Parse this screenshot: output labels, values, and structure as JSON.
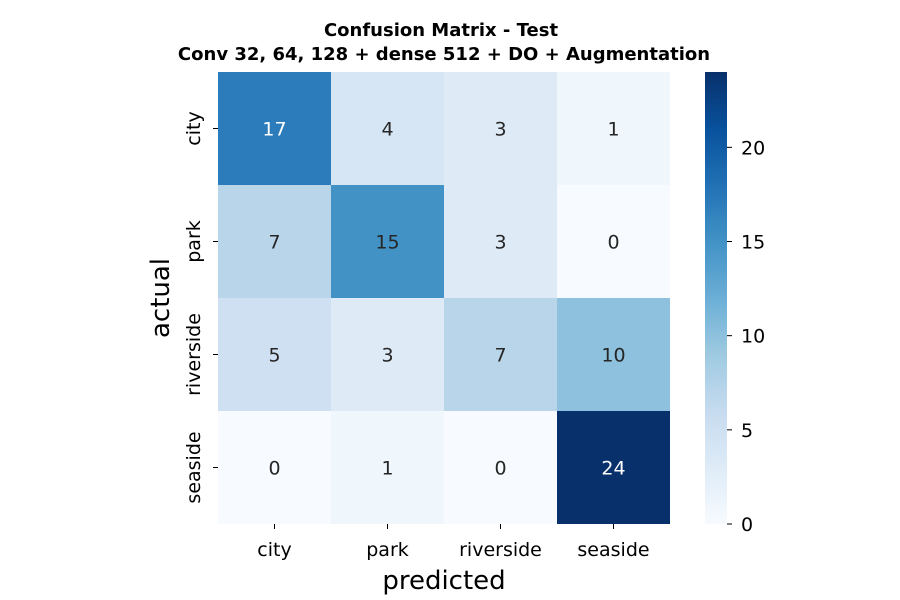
{
  "chart_data": {
    "type": "heatmap",
    "title": "Confusion Matrix - Test",
    "subtitle": "Conv 32, 64, 128 + dense 512 + DO + Augmentation",
    "xlabel": "predicted",
    "ylabel": "actual",
    "x_categories": [
      "city",
      "park",
      "riverside",
      "seaside"
    ],
    "y_categories": [
      "city",
      "park",
      "riverside",
      "seaside"
    ],
    "values": [
      [
        17,
        4,
        3,
        1
      ],
      [
        7,
        15,
        3,
        0
      ],
      [
        5,
        3,
        7,
        10
      ],
      [
        0,
        1,
        0,
        24
      ]
    ],
    "colormap": "Blues",
    "colorbar": {
      "range": [
        0,
        24
      ],
      "ticks": [
        0,
        5,
        10,
        15,
        20
      ],
      "tick_labels": [
        "0",
        "5",
        "10",
        "15",
        "20"
      ]
    },
    "annotations": true
  }
}
